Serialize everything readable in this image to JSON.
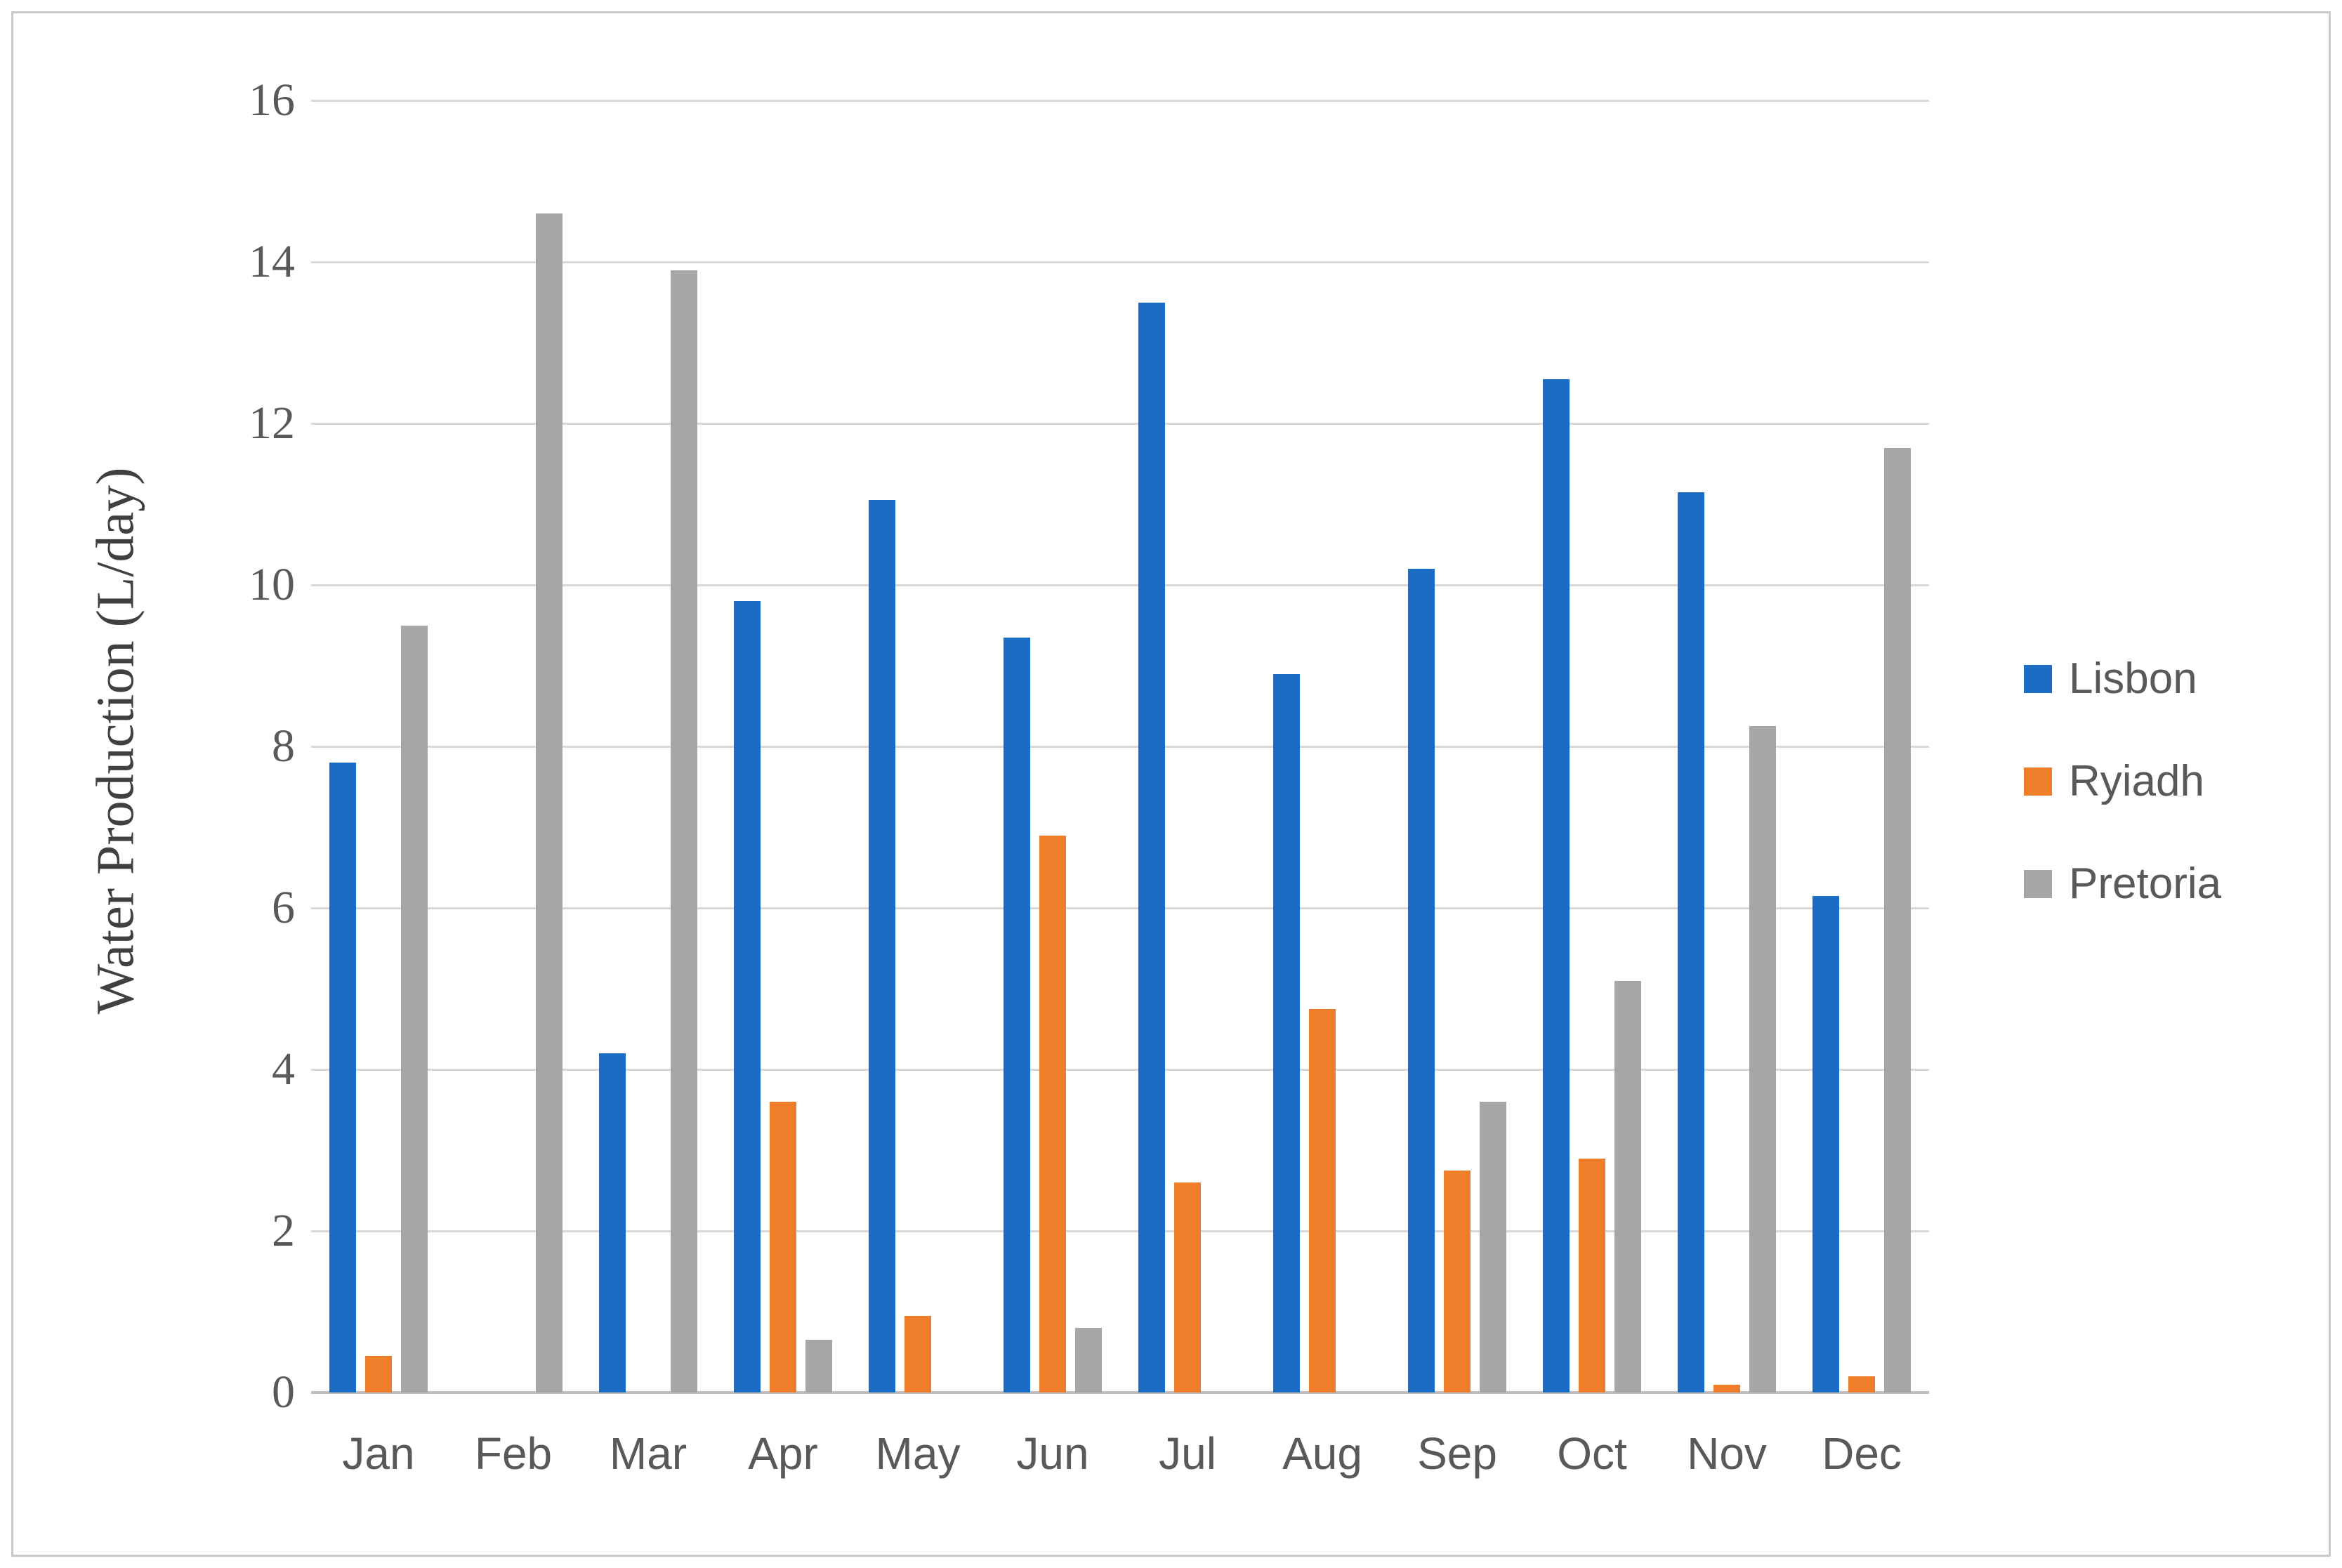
{
  "chart_data": {
    "type": "bar",
    "title": "",
    "xlabel": "",
    "ylabel": "Water Production (L/day)",
    "ylim": [
      0,
      16
    ],
    "yticks": [
      0,
      2,
      4,
      6,
      8,
      10,
      12,
      14,
      16
    ],
    "grid": true,
    "legend_position": "right",
    "categories": [
      "Jan",
      "Feb",
      "Mar",
      "Apr",
      "May",
      "Jun",
      "Jul",
      "Aug",
      "Sep",
      "Oct",
      "Nov",
      "Dec"
    ],
    "series": [
      {
        "name": "Lisbon",
        "color": "#1a6cc4",
        "values": [
          7.8,
          0,
          4.2,
          9.8,
          11.05,
          9.35,
          13.5,
          8.9,
          10.2,
          12.55,
          11.15,
          6.15
        ]
      },
      {
        "name": "Ryiadh",
        "color": "#f07d29",
        "values": [
          0.45,
          0,
          0,
          3.6,
          0.95,
          6.9,
          2.6,
          4.75,
          2.75,
          2.9,
          0.1,
          0.2
        ]
      },
      {
        "name": "Pretoria",
        "color": "#a6a6a6",
        "values": [
          9.5,
          14.6,
          13.9,
          0.65,
          0,
          0.8,
          0,
          0,
          3.6,
          5.1,
          8.25,
          11.7
        ]
      }
    ],
    "colors": {
      "gridline": "#d9d9d9",
      "axis_line": "#bfbfbf",
      "tick_text": "#595959",
      "axis_title_text": "#404040",
      "frame_border": "#c9c9c9"
    }
  }
}
